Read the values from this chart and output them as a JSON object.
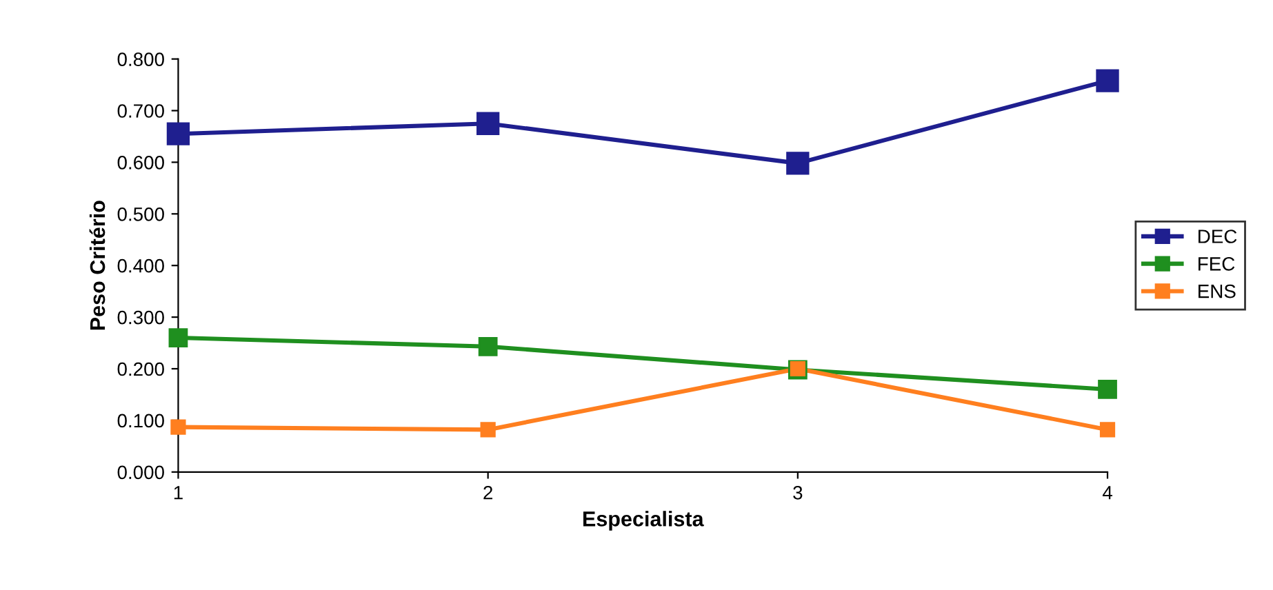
{
  "chart_data": {
    "type": "line",
    "xlabel": "Especialista",
    "ylabel": "Peso Critério",
    "x": [
      1,
      2,
      3,
      4
    ],
    "xlim": [
      1,
      4
    ],
    "xticks": [
      1,
      2,
      3,
      4
    ],
    "ylim": [
      0,
      0.8
    ],
    "yticks": [
      {
        "value": 0,
        "label": "0.000"
      },
      {
        "value": 0.1,
        "label": "0.100"
      },
      {
        "value": 0.2,
        "label": "0.200"
      },
      {
        "value": 0.3,
        "label": "0.300"
      },
      {
        "value": 0.4,
        "label": "0.400"
      },
      {
        "value": 0.5,
        "label": "0.500"
      },
      {
        "value": 0.6,
        "label": "0.600"
      },
      {
        "value": 0.7,
        "label": "0.700"
      },
      {
        "value": 0.8,
        "label": "0.800"
      }
    ],
    "series": [
      {
        "name": "DEC",
        "color": "#1f1f8f",
        "values": [
          0.655,
          0.675,
          0.598,
          0.758
        ]
      },
      {
        "name": "FEC",
        "color": "#1f8f1f",
        "values": [
          0.26,
          0.243,
          0.198,
          0.16
        ]
      },
      {
        "name": "ENS",
        "color": "#ff7f1f",
        "values": [
          0.087,
          0.082,
          0.2,
          0.082
        ]
      }
    ],
    "marker": "square",
    "line_style": "solid",
    "grid": false,
    "legend": "right"
  }
}
